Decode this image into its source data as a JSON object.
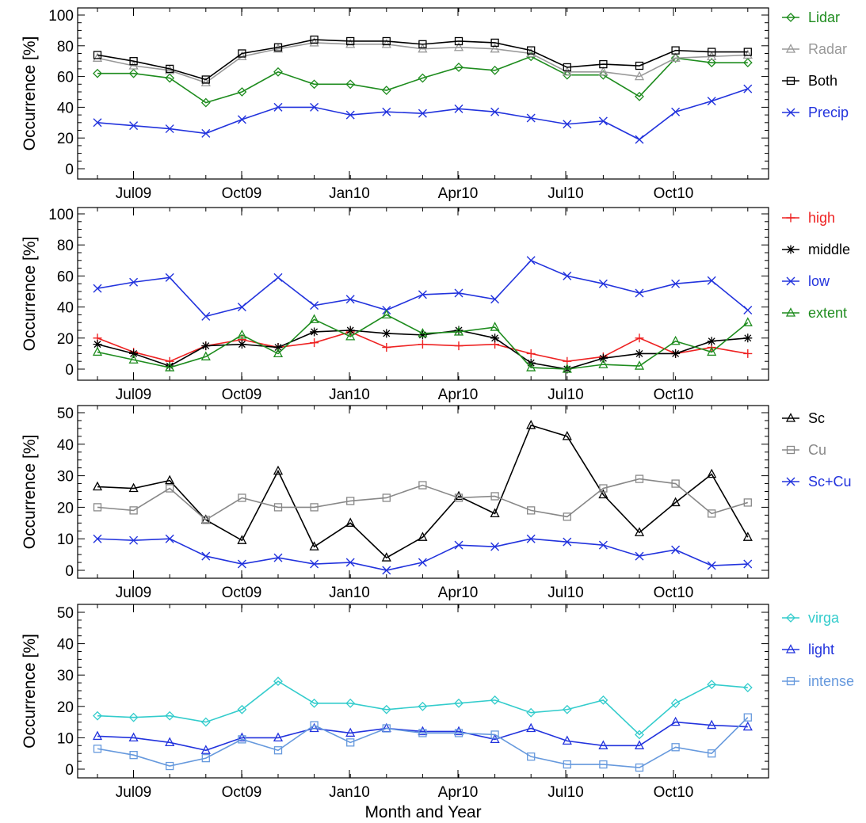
{
  "chart_data": [
    {
      "type": "line",
      "ylabel": "Occurrence [%]",
      "ylim": [
        0,
        100
      ],
      "yticks": [
        0,
        20,
        40,
        60,
        80,
        100
      ],
      "x": [
        1,
        2,
        3,
        4,
        5,
        6,
        7,
        8,
        9,
        10,
        11,
        12,
        13,
        14,
        15,
        16,
        17,
        18,
        19
      ],
      "xticks": [
        {
          "x": 1,
          "label": "Jul09"
        },
        {
          "x": 4,
          "label": "Oct09"
        },
        {
          "x": 7,
          "label": "Jan10"
        },
        {
          "x": 10,
          "label": "Apr10"
        },
        {
          "x": 13,
          "label": "Jul10"
        },
        {
          "x": 16,
          "label": "Oct10"
        }
      ],
      "legend": "right",
      "series": [
        {
          "name": "Lidar",
          "color": "#1e8c1e",
          "marker": "diamond",
          "values": [
            62,
            62,
            59,
            43,
            50,
            63,
            55,
            55,
            51,
            59,
            66,
            64,
            73,
            61,
            61,
            47,
            72,
            69,
            69
          ]
        },
        {
          "name": "Radar",
          "color": "#999999",
          "marker": "triangle",
          "values": [
            72,
            67,
            64,
            56,
            73,
            78,
            82,
            81,
            81,
            78,
            79,
            78,
            75,
            63,
            63,
            60,
            72,
            73,
            74
          ]
        },
        {
          "name": "Both",
          "color": "#000000",
          "marker": "square",
          "values": [
            74,
            70,
            65,
            58,
            75,
            79,
            84,
            83,
            83,
            81,
            83,
            82,
            77,
            66,
            68,
            67,
            77,
            76,
            76
          ]
        },
        {
          "name": "Precip",
          "color": "#2233dd",
          "marker": "x",
          "values": [
            30,
            28,
            26,
            23,
            32,
            40,
            40,
            35,
            37,
            36,
            39,
            37,
            33,
            29,
            31,
            19,
            37,
            44,
            52
          ]
        }
      ]
    },
    {
      "type": "line",
      "ylabel": "Occurrence [%]",
      "ylim": [
        0,
        100
      ],
      "yticks": [
        0,
        20,
        40,
        60,
        80,
        100
      ],
      "x": [
        0,
        1,
        2,
        3,
        4,
        5,
        6,
        7,
        8,
        9,
        10,
        11,
        12,
        13,
        14,
        15,
        16,
        17,
        18
      ],
      "xticks": [
        {
          "x": 1,
          "label": "Jul09"
        },
        {
          "x": 4,
          "label": "Oct09"
        },
        {
          "x": 7,
          "label": "Jan10"
        },
        {
          "x": 10,
          "label": "Apr10"
        },
        {
          "x": 13,
          "label": "Jul10"
        },
        {
          "x": 16,
          "label": "Oct10"
        }
      ],
      "legend": "right",
      "series": [
        {
          "name": "high",
          "color": "#ee2222",
          "marker": "plus",
          "values": [
            20,
            11,
            5,
            15,
            19,
            14,
            17,
            24,
            14,
            16,
            15,
            16,
            10,
            5,
            8,
            20,
            10,
            14,
            10
          ]
        },
        {
          "name": "middle",
          "color": "#000000",
          "marker": "asterisk",
          "values": [
            16,
            10,
            2,
            15,
            16,
            14,
            24,
            25,
            23,
            22,
            25,
            20,
            4,
            0,
            7,
            10,
            10,
            18,
            20
          ]
        },
        {
          "name": "low",
          "color": "#2233dd",
          "marker": "x",
          "values": [
            52,
            56,
            59,
            34,
            40,
            59,
            41,
            45,
            38,
            48,
            49,
            45,
            70,
            60,
            55,
            49,
            55,
            57,
            38
          ]
        },
        {
          "name": "extent",
          "color": "#1e8c1e",
          "marker": "triangle",
          "values": [
            11,
            6,
            1,
            8,
            22,
            10,
            32,
            21,
            35,
            23,
            24,
            27,
            1,
            0,
            3,
            2,
            18,
            11,
            30
          ]
        }
      ]
    },
    {
      "type": "line",
      "ylabel": "Occurrence [%]",
      "ylim": [
        0,
        50
      ],
      "yticks": [
        0,
        10,
        20,
        30,
        40,
        50
      ],
      "x": [
        0,
        1,
        2,
        3,
        4,
        5,
        6,
        7,
        8,
        9,
        10,
        11,
        12,
        13,
        14,
        15,
        16,
        17,
        18
      ],
      "xticks": [
        {
          "x": 1,
          "label": "Jul09"
        },
        {
          "x": 4,
          "label": "Oct09"
        },
        {
          "x": 7,
          "label": "Jan10"
        },
        {
          "x": 10,
          "label": "Apr10"
        },
        {
          "x": 13,
          "label": "Jul10"
        },
        {
          "x": 16,
          "label": "Oct10"
        }
      ],
      "legend": "right",
      "series": [
        {
          "name": "Sc",
          "color": "#000000",
          "marker": "triangle",
          "values": [
            26.5,
            26,
            28.5,
            16,
            9.5,
            31.5,
            7.5,
            15,
            4,
            10.5,
            23.5,
            18,
            46,
            42.5,
            24,
            12,
            21.5,
            30.5,
            10.5
          ]
        },
        {
          "name": "Cu",
          "color": "#888888",
          "marker": "square",
          "values": [
            20,
            19,
            26,
            16,
            23,
            20,
            20,
            22,
            23,
            27,
            23,
            23.5,
            19,
            17,
            26,
            29,
            27.5,
            18,
            21.5
          ]
        },
        {
          "name": "Sc+Cu",
          "color": "#2233dd",
          "marker": "x",
          "values": [
            10,
            9.5,
            10,
            4.5,
            2,
            4,
            2,
            2.5,
            0,
            2.5,
            8,
            7.5,
            10,
            9,
            8,
            4.5,
            6.5,
            1.5,
            2
          ]
        }
      ]
    },
    {
      "type": "line",
      "ylabel": "Occurrence [%]",
      "ylim": [
        0,
        50
      ],
      "yticks": [
        0,
        10,
        20,
        30,
        40,
        50
      ],
      "x": [
        0,
        1,
        2,
        3,
        4,
        5,
        6,
        7,
        8,
        9,
        10,
        11,
        12,
        13,
        14,
        15,
        16,
        17,
        18
      ],
      "xticks": [
        {
          "x": 1,
          "label": "Jul09"
        },
        {
          "x": 4,
          "label": "Oct09"
        },
        {
          "x": 7,
          "label": "Jan10"
        },
        {
          "x": 10,
          "label": "Apr10"
        },
        {
          "x": 13,
          "label": "Jul10"
        },
        {
          "x": 16,
          "label": "Oct10"
        }
      ],
      "xlabel": "Month and Year",
      "legend": "right",
      "series": [
        {
          "name": "virga",
          "color": "#33cccc",
          "marker": "diamond",
          "values": [
            17,
            16.5,
            17,
            15,
            19,
            28,
            21,
            21,
            19,
            20,
            21,
            22,
            18,
            19,
            22,
            11,
            21,
            27,
            26
          ]
        },
        {
          "name": "light",
          "color": "#2233dd",
          "marker": "triangle",
          "values": [
            10.5,
            10,
            8.5,
            6,
            10,
            10,
            13,
            11.5,
            13,
            12,
            12,
            9.5,
            13,
            9,
            7.5,
            7.5,
            15,
            14,
            13.5
          ]
        },
        {
          "name": "intense",
          "color": "#6699dd",
          "marker": "square",
          "values": [
            6.5,
            4.5,
            1,
            3.5,
            9.5,
            6,
            14,
            8.5,
            13,
            11.5,
            11.5,
            11,
            4,
            1.5,
            1.5,
            0.5,
            7,
            5,
            16.5
          ]
        }
      ]
    }
  ]
}
